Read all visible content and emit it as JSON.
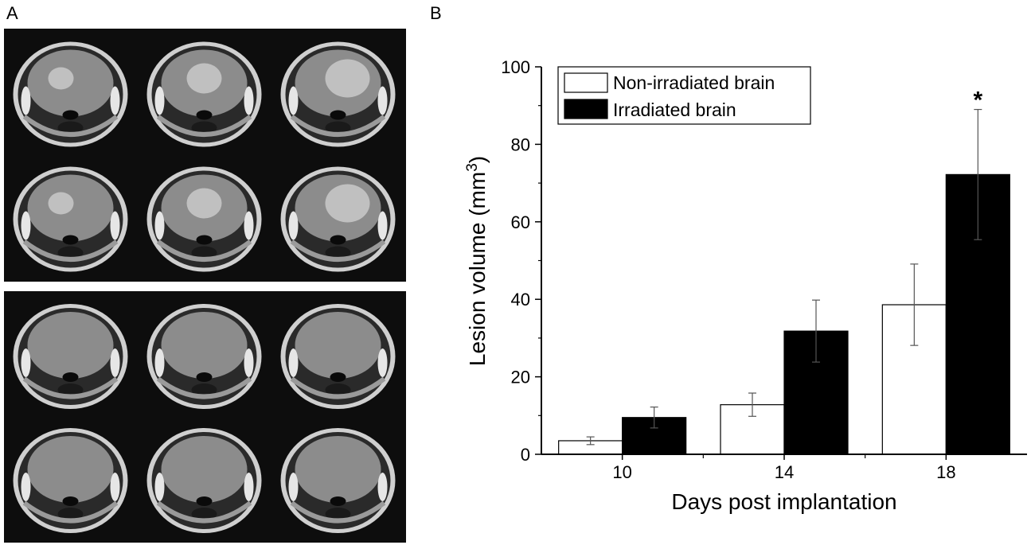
{
  "panels": {
    "a_label": "A",
    "b_label": "B"
  },
  "colors": {
    "non_irradiated_fill": "#ffffff",
    "irradiated_fill": "#000000",
    "mri_background": "#0d0d0d"
  },
  "mri_grid": {
    "upper_group_rows": 2,
    "lower_group_rows": 2,
    "columns": 3
  },
  "chart_data": {
    "type": "bar",
    "categories": [
      "10",
      "14",
      "18"
    ],
    "series": [
      {
        "name": "Non-irradiated brain",
        "values": [
          3.5,
          12.8,
          38.6
        ],
        "errors": [
          1.0,
          3.0,
          10.5
        ]
      },
      {
        "name": "Irradiated brain",
        "values": [
          9.5,
          31.8,
          72.2
        ],
        "errors": [
          2.7,
          8.0,
          16.8
        ]
      }
    ],
    "xlabel": "Days post implantation",
    "ylabel_main": "Lesion volume (mm",
    "ylabel_sup": "3",
    "ylabel_close": ")",
    "ylim": [
      0,
      100
    ],
    "yticks": [
      0,
      20,
      40,
      60,
      80,
      100
    ],
    "legend_position": "top-left",
    "grid": false,
    "annotations": [
      {
        "category": "18",
        "series": "Irradiated brain",
        "text": "*"
      }
    ]
  }
}
